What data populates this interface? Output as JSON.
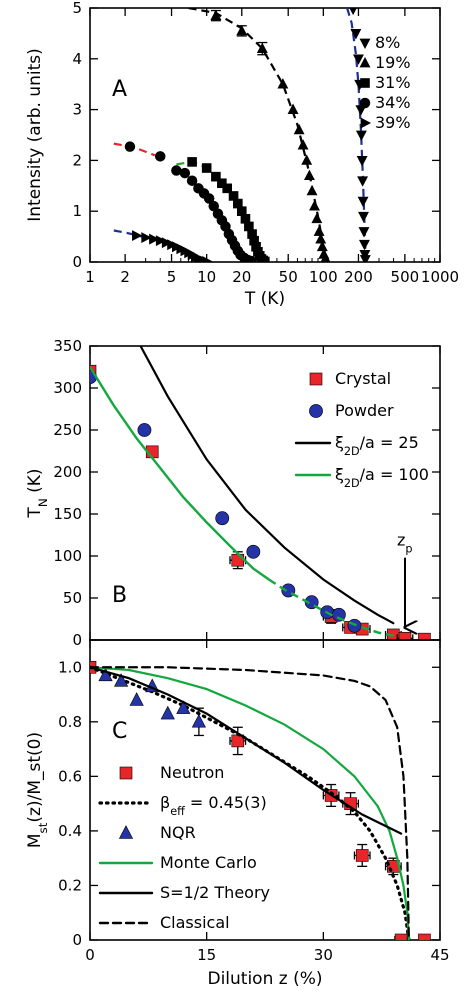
{
  "chart_data": [
    {
      "panel_label": "A",
      "type": "scatter",
      "xscale": "log",
      "xlim": [
        1,
        1000
      ],
      "ylim": [
        0,
        5
      ],
      "xlabel": "T (K)",
      "ylabel": "Intensity (arb. units)",
      "xticks": [
        1,
        2,
        5,
        10,
        20,
        50,
        100,
        200,
        500,
        1000
      ],
      "xtick_labels": [
        "1",
        "2",
        "5",
        "10",
        "20",
        "50",
        "100",
        "200",
        "500",
        "1000"
      ],
      "yticks": [
        0,
        1,
        2,
        3,
        4,
        5
      ],
      "ytick_labels": [
        "0",
        "1",
        "2",
        "3",
        "4",
        "5"
      ],
      "legend_position": "right",
      "series": [
        {
          "name": "8%",
          "marker": "triangle-down",
          "color": "#000000",
          "x": [
            180,
            190,
            200,
            205,
            210,
            212,
            215,
            217,
            219,
            221,
            223,
            225,
            227,
            229
          ],
          "y": [
            4.98,
            4.5,
            4.0,
            3.5,
            3.0,
            2.5,
            2.0,
            1.6,
            1.2,
            0.9,
            0.6,
            0.35,
            0.15,
            0.05
          ],
          "fit": {
            "color": "#1f2f8f",
            "dash": "dashed",
            "x": [
              160,
              175,
              190,
              200,
              210,
              218,
              225,
              230
            ],
            "y": [
              5.0,
              4.7,
              4.1,
              3.5,
              2.6,
              1.7,
              0.8,
              0.1
            ]
          }
        },
        {
          "name": "19%",
          "marker": "triangle-up",
          "color": "#000000",
          "x": [
            12,
            20,
            30,
            45,
            55,
            62,
            67,
            72,
            76,
            80,
            84,
            88,
            92,
            95,
            98,
            101,
            104,
            107
          ],
          "y": [
            4.85,
            4.55,
            4.2,
            3.5,
            3.0,
            2.6,
            2.3,
            2.0,
            1.7,
            1.4,
            1.1,
            0.85,
            0.6,
            0.45,
            0.3,
            0.15,
            0.06,
            0.02
          ],
          "error_bars": [
            0.1,
            0.1,
            0.12
          ],
          "fit": {
            "color": "#000000",
            "dash": "dashed",
            "x": [
              7,
              12,
              20,
              30,
              45,
              60,
              75,
              90,
              100,
              108
            ],
            "y": [
              5.0,
              4.9,
              4.6,
              4.2,
              3.5,
              2.7,
              1.8,
              0.9,
              0.3,
              0.0
            ]
          }
        },
        {
          "name": "31%",
          "marker": "square",
          "color": "#000000",
          "x": [
            7.5,
            10,
            12,
            13.5,
            15,
            17,
            18.5,
            20,
            21.5,
            23,
            24.5,
            25.5,
            26.5,
            27.5,
            28.5,
            29.5,
            30.5,
            31.5
          ],
          "y": [
            1.97,
            1.85,
            1.68,
            1.55,
            1.45,
            1.3,
            1.15,
            1.0,
            0.85,
            0.7,
            0.55,
            0.42,
            0.3,
            0.2,
            0.12,
            0.06,
            0.03,
            0.01
          ],
          "fit": {
            "color": "#2ca02c",
            "dash": "dashed",
            "x": [
              5.5,
              6.5,
              7.5,
              8.5,
              10
            ],
            "y": [
              1.92,
              1.95,
              1.96,
              1.93,
              1.85
            ]
          }
        },
        {
          "name": "34%",
          "marker": "circle",
          "color": "#000000",
          "x": [
            2.2,
            4,
            5.5,
            6.5,
            7.5,
            8.5,
            9.5,
            10.5,
            11.5,
            12.5,
            13.5,
            14.5,
            15.5,
            16.5,
            17.5,
            18.5,
            19.5,
            21,
            22.5,
            24
          ],
          "y": [
            2.27,
            2.08,
            1.8,
            1.75,
            1.6,
            1.45,
            1.35,
            1.25,
            1.1,
            0.95,
            0.82,
            0.7,
            0.55,
            0.43,
            0.32,
            0.22,
            0.14,
            0.08,
            0.04,
            0.02
          ],
          "fit": {
            "color": "#e8262a",
            "dash": "dashed",
            "x": [
              1.6,
              2,
              2.5,
              3,
              3.6
            ],
            "y": [
              2.33,
              2.29,
              2.24,
              2.17,
              2.1
            ]
          }
        },
        {
          "name": "39%",
          "marker": "triangle-right",
          "color": "#000000",
          "x": [
            2.5,
            3,
            3.5,
            4,
            4.5,
            5,
            5.5,
            6,
            6.5,
            7,
            7.5,
            8,
            8.5,
            9,
            9.5,
            10
          ],
          "y": [
            0.52,
            0.48,
            0.45,
            0.42,
            0.38,
            0.34,
            0.3,
            0.26,
            0.22,
            0.18,
            0.14,
            0.1,
            0.07,
            0.04,
            0.02,
            0.01
          ],
          "fit": {
            "color": "#1f2f8f",
            "dash": "dashed",
            "x": [
              1.6,
              2,
              2.5,
              3
            ],
            "y": [
              0.62,
              0.58,
              0.53,
              0.48
            ]
          }
        }
      ]
    },
    {
      "panel_label": "B",
      "type": "scatter",
      "xlim": [
        0,
        45
      ],
      "ylim": [
        0,
        350
      ],
      "xlabel": "",
      "ylabel": "T_N (K)",
      "xticks": [
        0,
        15,
        30,
        45
      ],
      "xtick_labels": [
        "",
        "",
        "",
        ""
      ],
      "yticks": [
        0,
        50,
        100,
        150,
        200,
        250,
        300,
        350
      ],
      "ytick_labels": [
        "0",
        "50",
        "100",
        "150",
        "200",
        "250",
        "300",
        "350"
      ],
      "legend_position": "top-right",
      "annotation": {
        "text": "z",
        "subscript": "p",
        "x": 40.5,
        "arrow_from": 98,
        "arrow_to": 15
      },
      "series": [
        {
          "name": "Crystal",
          "marker": "square",
          "color": "#e8262a",
          "x": [
            0,
            8,
            19,
            31,
            33.5,
            35,
            39,
            40.5,
            43
          ],
          "y": [
            320,
            224,
            95,
            28,
            15,
            13,
            6,
            2,
            1
          ],
          "xerr": [
            0,
            0.6,
            1.0,
            1.0,
            1.0,
            1.0,
            1.0,
            1.0,
            0
          ],
          "yerr": [
            0,
            6,
            10,
            8,
            5,
            4,
            3,
            2,
            0
          ]
        },
        {
          "name": "Powder",
          "marker": "circle",
          "color": "#2433a6",
          "x": [
            0,
            7,
            17,
            21,
            25.5,
            28.5,
            30.5,
            32,
            34
          ],
          "y": [
            313,
            250,
            145,
            105,
            59,
            45,
            33,
            30,
            17
          ]
        },
        {
          "name": "ξ_2D/a = 25",
          "type": "line",
          "color": "#000000",
          "dash": "solid",
          "x": [
            6.5,
            10,
            15,
            20,
            25,
            30,
            34,
            37,
            39
          ],
          "y": [
            350,
            290,
            215,
            155,
            110,
            72,
            47,
            30,
            20
          ]
        },
        {
          "name": "ξ_2D/a = 100",
          "type": "line",
          "color": "#13a83e",
          "dash": "solid",
          "x": [
            0,
            3,
            6,
            9,
            12,
            15,
            18,
            21,
            23,
            25,
            27,
            29,
            31,
            33,
            35,
            37,
            39
          ],
          "y": [
            325,
            280,
            240,
            205,
            170,
            140,
            112,
            85,
            72,
            60,
            50,
            40,
            30,
            22,
            15,
            9,
            5
          ],
          "dashed_from_x": 23
        }
      ]
    },
    {
      "panel_label": "C",
      "type": "scatter",
      "xlim": [
        0,
        45
      ],
      "ylim": [
        0,
        1.1
      ],
      "xlabel": "Dilution z (%)",
      "ylabel": "M_st(z)/M_st(0)",
      "xticks": [
        0,
        15,
        30,
        45
      ],
      "xtick_labels": [
        "0",
        "15",
        "30",
        "45"
      ],
      "yticks": [
        0,
        0.2,
        0.4,
        0.6,
        0.8,
        1.0
      ],
      "ytick_labels": [
        "0",
        "0.2",
        "0.4",
        "0.6",
        "0.8",
        "1.0"
      ],
      "legend_position": "bottom-left",
      "series": [
        {
          "name": "Neutron",
          "marker": "square",
          "color": "#e8262a",
          "x": [
            0,
            19,
            31,
            33.5,
            35,
            39,
            40,
            43
          ],
          "y": [
            1.0,
            0.73,
            0.53,
            0.5,
            0.31,
            0.27,
            0.0,
            0.0
          ],
          "xerr": [
            0,
            1.0,
            1.0,
            1.0,
            1.0,
            1.0,
            0.8,
            0
          ],
          "yerr": [
            0,
            0.05,
            0.04,
            0.04,
            0.04,
            0.03,
            0.0,
            0
          ]
        },
        {
          "name": "β_eff = 0.45(3)",
          "type": "line",
          "color": "#000000",
          "dash": "dotted",
          "x": [
            0,
            4,
            8,
            12,
            16,
            20,
            24,
            28,
            31,
            34,
            36,
            38,
            39.5,
            40.5,
            41
          ],
          "y": [
            1.0,
            0.955,
            0.91,
            0.86,
            0.8,
            0.74,
            0.67,
            0.6,
            0.54,
            0.47,
            0.4,
            0.3,
            0.2,
            0.1,
            0.0
          ]
        },
        {
          "name": "NQR",
          "marker": "triangle-up",
          "color": "#2433a6",
          "x": [
            2,
            4,
            6,
            8,
            10,
            12,
            14
          ],
          "y": [
            0.97,
            0.95,
            0.88,
            0.93,
            0.83,
            0.85,
            0.8
          ],
          "yerr": [
            0,
            0,
            0,
            0,
            0,
            0,
            0.05
          ]
        },
        {
          "name": "Monte Carlo",
          "type": "line",
          "color": "#13a83e",
          "dash": "solid",
          "x": [
            0,
            5,
            10,
            15,
            20,
            25,
            30,
            34,
            37,
            38.5,
            39.5,
            40.3,
            40.8,
            41
          ],
          "y": [
            1.0,
            0.99,
            0.96,
            0.92,
            0.86,
            0.79,
            0.7,
            0.6,
            0.49,
            0.4,
            0.3,
            0.2,
            0.1,
            0.0
          ]
        },
        {
          "name": "S=1/2 Theory",
          "type": "line",
          "color": "#000000",
          "dash": "solid",
          "x": [
            0,
            5,
            10,
            15,
            20,
            25,
            30,
            35,
            40
          ],
          "y": [
            1.0,
            0.96,
            0.9,
            0.83,
            0.74,
            0.65,
            0.55,
            0.46,
            0.39
          ]
        },
        {
          "name": "Classical",
          "type": "line",
          "color": "#000000",
          "dash": "dashed",
          "x": [
            0,
            10,
            20,
            30,
            34,
            36,
            38,
            39.5,
            40.3,
            40.8,
            41
          ],
          "y": [
            1.0,
            1.0,
            0.99,
            0.97,
            0.95,
            0.93,
            0.88,
            0.78,
            0.6,
            0.3,
            0.0
          ]
        }
      ]
    }
  ]
}
